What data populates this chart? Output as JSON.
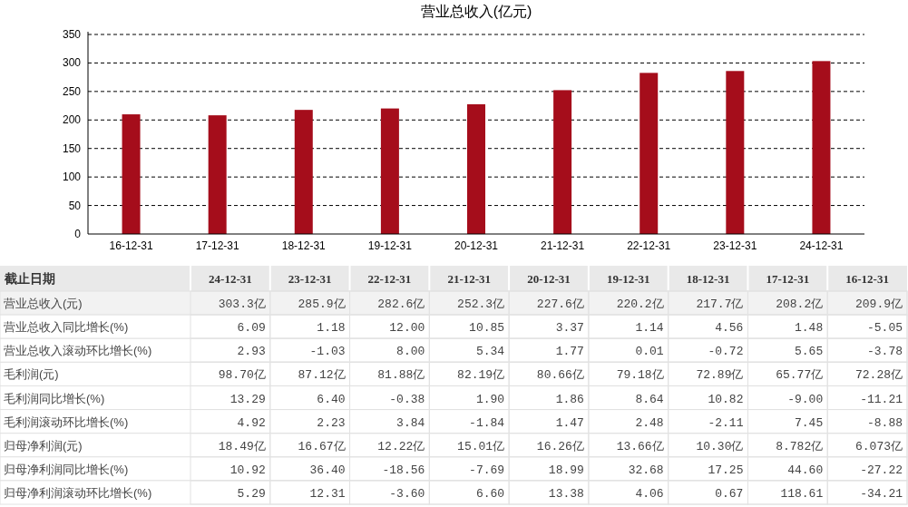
{
  "chart_data": [
    {
      "type": "bar",
      "title": "营业总收入(亿元)",
      "categories": [
        "16-12-31",
        "17-12-31",
        "18-12-31",
        "19-12-31",
        "20-12-31",
        "21-12-31",
        "22-12-31",
        "23-12-31",
        "24-12-31"
      ],
      "values": [
        209.9,
        208.2,
        217.7,
        220.2,
        227.6,
        252.3,
        282.6,
        285.9,
        303.3
      ],
      "color": "#a50d1b",
      "ylim": [
        0,
        350
      ],
      "yticks": [
        0,
        50,
        100,
        150,
        200,
        250,
        300,
        350
      ],
      "grid": "y"
    },
    {
      "type": "heatmap",
      "ylabel": "截止日期",
      "categories": [
        "24-12-31",
        "23-12-31",
        "22-12-31",
        "21-12-31",
        "20-12-31",
        "19-12-31",
        "18-12-31",
        "17-12-31",
        "16-12-31"
      ],
      "y_categories": [
        "营业总收入(元)",
        "营业总收入同比增长(%)",
        "营业总收入滚动环比增长(%)",
        "毛利润(元)",
        "毛利润同比增长(%)",
        "毛利润滚动环比增长(%)",
        "归母净利润(元)",
        "归母净利润同比增长(%)",
        "归母净利润滚动环比增长(%)"
      ],
      "cells": [
        [
          303.3,
          285.9,
          282.6,
          252.3,
          227.6,
          220.2,
          217.7,
          208.2,
          209.9
        ],
        [
          6.09,
          1.18,
          12.0,
          10.85,
          3.37,
          1.14,
          4.56,
          1.48,
          -5.05
        ],
        [
          2.93,
          -1.03,
          8.0,
          5.34,
          1.77,
          0.01,
          -0.72,
          5.65,
          -3.78
        ],
        [
          98.7,
          87.12,
          81.88,
          82.19,
          80.66,
          79.18,
          72.89,
          65.77,
          72.28
        ],
        [
          13.29,
          6.4,
          -0.38,
          1.9,
          1.86,
          8.64,
          10.82,
          -9.0,
          -11.21
        ],
        [
          4.92,
          2.23,
          3.84,
          -1.84,
          1.47,
          2.48,
          -2.11,
          7.45,
          -8.88
        ],
        [
          18.49,
          16.67,
          12.22,
          15.01,
          16.26,
          13.66,
          10.3,
          8.782,
          6.073
        ],
        [
          10.92,
          36.4,
          -18.56,
          -7.69,
          18.99,
          32.68,
          17.25,
          44.6,
          -27.22
        ],
        [
          5.29,
          12.31,
          -3.6,
          6.6,
          13.38,
          4.06,
          0.67,
          118.61,
          -34.21
        ]
      ],
      "cell_labels": [
        [
          "303.3亿",
          "285.9亿",
          "282.6亿",
          "252.3亿",
          "227.6亿",
          "220.2亿",
          "217.7亿",
          "208.2亿",
          "209.9亿"
        ],
        [
          "6.09",
          "1.18",
          "12.00",
          "10.85",
          "3.37",
          "1.14",
          "4.56",
          "1.48",
          "-5.05"
        ],
        [
          "2.93",
          "-1.03",
          "8.00",
          "5.34",
          "1.77",
          "0.01",
          "-0.72",
          "5.65",
          "-3.78"
        ],
        [
          "98.70亿",
          "87.12亿",
          "81.88亿",
          "82.19亿",
          "80.66亿",
          "79.18亿",
          "72.89亿",
          "65.77亿",
          "72.28亿"
        ],
        [
          "13.29",
          "6.40",
          "-0.38",
          "1.90",
          "1.86",
          "8.64",
          "10.82",
          "-9.00",
          "-11.21"
        ],
        [
          "4.92",
          "2.23",
          "3.84",
          "-1.84",
          "1.47",
          "2.48",
          "-2.11",
          "7.45",
          "-8.88"
        ],
        [
          "18.49亿",
          "16.67亿",
          "12.22亿",
          "15.01亿",
          "16.26亿",
          "13.66亿",
          "10.30亿",
          "8.782亿",
          "6.073亿"
        ],
        [
          "10.92",
          "36.40",
          "-18.56",
          "-7.69",
          "18.99",
          "32.68",
          "17.25",
          "44.60",
          "-27.22"
        ],
        [
          "5.29",
          "12.31",
          "-3.60",
          "6.60",
          "13.38",
          "4.06",
          "0.67",
          "118.61",
          "-34.21"
        ]
      ]
    }
  ]
}
